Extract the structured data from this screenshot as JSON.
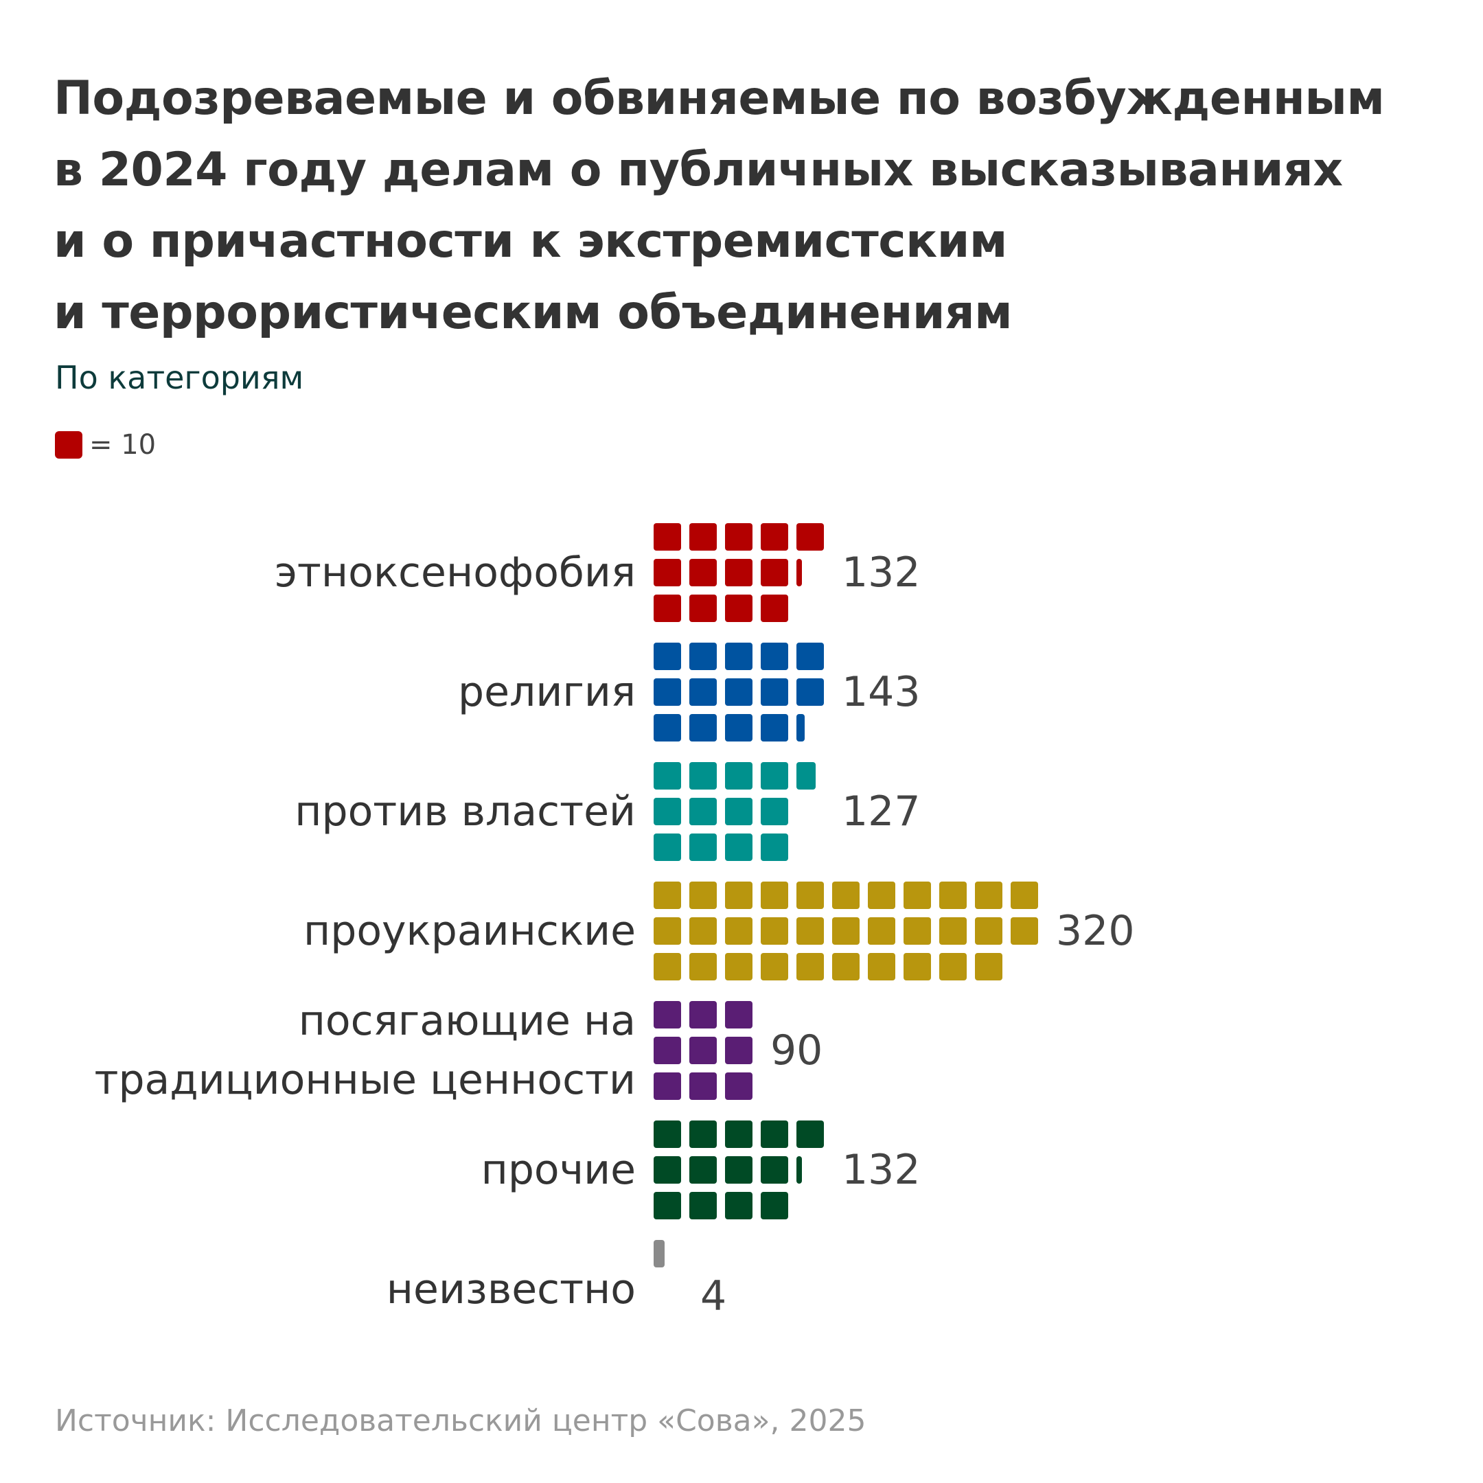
{
  "title_lines": [
    "Подозреваемые и обвиняемые по возбужденным",
    "в 2024 году делам о публичных высказываниях",
    "и о причастности к экстремистским",
    "и террористическим объединениям"
  ],
  "subtitle": "По категориям",
  "legend": {
    "label": "= 10",
    "unit_value": 10,
    "swatch_color": "#b30000"
  },
  "source": "Источник: Исследовательский центр «Сова», 2025",
  "chart_data": {
    "type": "bar",
    "subtype": "waffle",
    "unit_value": 10,
    "categories": [
      {
        "label_lines": [
          "этноксенофобия"
        ],
        "value": 132,
        "value_label": "132",
        "color": "#b30000"
      },
      {
        "label_lines": [
          "религия"
        ],
        "value": 143,
        "value_label": "143",
        "color": "#0053a0"
      },
      {
        "label_lines": [
          "против властей"
        ],
        "value": 127,
        "value_label": "127",
        "color": "#00918d"
      },
      {
        "label_lines": [
          "проукраинские"
        ],
        "value": 320,
        "value_label": "320",
        "color": "#b8960e"
      },
      {
        "label_lines": [
          "посягающие на",
          "традиционные ценности"
        ],
        "value": 90,
        "value_label": "90",
        "color": "#5a1e74"
      },
      {
        "label_lines": [
          "прочие"
        ],
        "value": 132,
        "value_label": "132",
        "color": "#004a25"
      },
      {
        "label_lines": [
          "неизвестно"
        ],
        "value": 4,
        "value_label": "4",
        "color": "#8a8a8a"
      }
    ]
  }
}
